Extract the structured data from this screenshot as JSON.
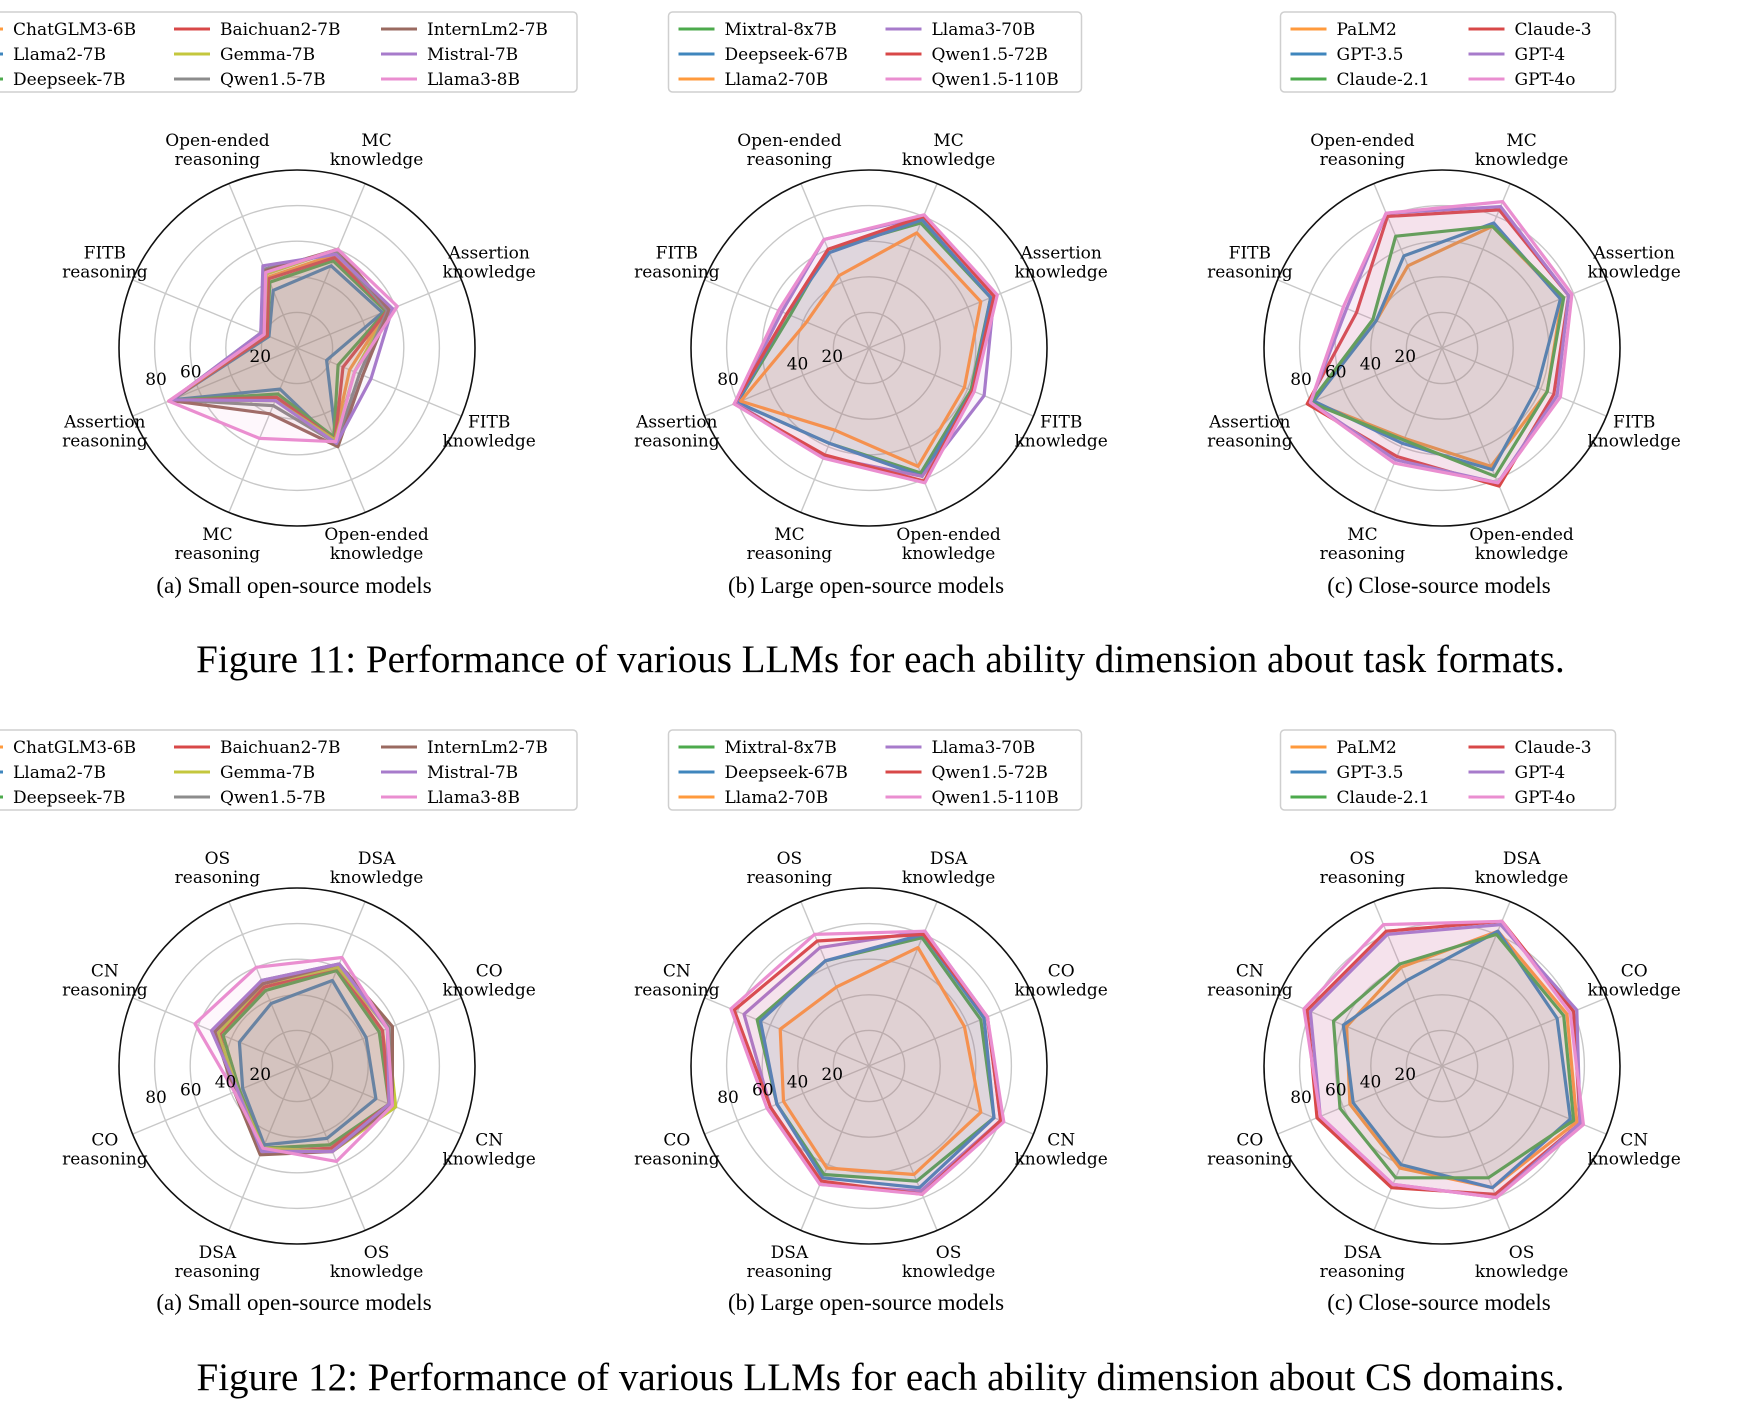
{
  "figures": [
    {
      "caption": "Figure 11: Performance of various LLMs for each ability dimension about task formats.",
      "panels": [
        {
          "legend_cols": [
            [
              "ChatGLM3-6B",
              "Llama2-7B",
              "Deepseek-7B"
            ],
            [
              "Baichuan2-7B",
              "Gemma-7B",
              "Qwen1.5-7B"
            ],
            [
              "InternLm2-7B",
              "Mistral-7B",
              "Llama3-8B"
            ]
          ],
          "caption": "(a) Small open-source models"
        },
        {
          "legend_cols": [
            [
              "Mixtral-8x7B",
              "Deepseek-67B",
              "Llama2-70B"
            ],
            [
              "Llama3-70B",
              "Qwen1.5-72B",
              "Qwen1.5-110B"
            ]
          ],
          "caption": "(b) Large open-source models"
        },
        {
          "legend_cols": [
            [
              "PaLM2",
              "GPT-3.5",
              "Claude-2.1"
            ],
            [
              "Claude-3",
              "GPT-4",
              "GPT-4o"
            ]
          ],
          "caption": "(c) Close-source models"
        }
      ]
    },
    {
      "caption": "Figure 12: Performance of various LLMs for each ability dimension about CS domains.",
      "panels": [
        {
          "legend_cols": [
            [
              "ChatGLM3-6B",
              "Llama2-7B",
              "Deepseek-7B"
            ],
            [
              "Baichuan2-7B",
              "Gemma-7B",
              "Qwen1.5-7B"
            ],
            [
              "InternLm2-7B",
              "Mistral-7B",
              "Llama3-8B"
            ]
          ],
          "caption": "(a) Small open-source models"
        },
        {
          "legend_cols": [
            [
              "Mixtral-8x7B",
              "Deepseek-67B",
              "Llama2-70B"
            ],
            [
              "Llama3-70B",
              "Qwen1.5-72B",
              "Qwen1.5-110B"
            ]
          ],
          "caption": "(b) Large open-source models"
        },
        {
          "legend_cols": [
            [
              "PaLM2",
              "GPT-3.5",
              "Claude-2.1"
            ],
            [
              "Claude-3",
              "GPT-4",
              "GPT-4o"
            ]
          ],
          "caption": "(c) Close-source models"
        }
      ]
    }
  ],
  "colors": {
    "ChatGLM3-6B": "#ff9a3c",
    "Llama2-7B": "#3f86bd",
    "Deepseek-7B": "#4caa4c",
    "Baichuan2-7B": "#d84848",
    "Gemma-7B": "#c4c73d",
    "Qwen1.5-7B": "#8c8c8c",
    "InternLm2-7B": "#9a6a60",
    "Mistral-7B": "#a77bcb",
    "Llama3-8B": "#ea8ed0",
    "Mixtral-8x7B": "#4caa4c",
    "Deepseek-67B": "#3f86bd",
    "Llama2-70B": "#ff9a3c",
    "Llama3-70B": "#a77bcb",
    "Qwen1.5-72B": "#d84848",
    "Qwen1.5-110B": "#ea8ed0",
    "PaLM2": "#ff9a3c",
    "GPT-3.5": "#3f86bd",
    "Claude-2.1": "#4caa4c",
    "Claude-3": "#d84848",
    "GPT-4": "#a77bcb",
    "GPT-4o": "#ea8ed0"
  },
  "chart_data": [
    {
      "type": "radar",
      "figure": 11,
      "panel": "a",
      "axes": [
        "MC\nknowledge",
        "Assertion\nknowledge",
        "FITB\nknowledge",
        "Open-ended\nknowledge",
        "MC\nreasoning",
        "Assertion\nreasoning",
        "FITB\nreasoning",
        "Open-ended\nreasoning"
      ],
      "r_ticks": [
        20,
        40,
        60,
        80
      ],
      "r_tick_labels": [
        "20",
        "",
        "60",
        "80"
      ],
      "r_max": 100,
      "series": [
        {
          "name": "ChatGLM3-6B",
          "values": [
            57,
            55,
            32,
            55,
            30,
            78,
            18,
            43
          ]
        },
        {
          "name": "Llama2-7B",
          "values": [
            50,
            52,
            18,
            58,
            25,
            76,
            17,
            35
          ]
        },
        {
          "name": "Deepseek-7B",
          "values": [
            53,
            54,
            25,
            54,
            28,
            77,
            18,
            40
          ]
        },
        {
          "name": "Baichuan2-7B",
          "values": [
            55,
            55,
            28,
            56,
            30,
            77,
            18,
            42
          ]
        },
        {
          "name": "Gemma-7B",
          "values": [
            60,
            56,
            35,
            56,
            32,
            77,
            20,
            45
          ]
        },
        {
          "name": "Qwen1.5-7B",
          "values": [
            58,
            55,
            38,
            58,
            35,
            76,
            22,
            48
          ]
        },
        {
          "name": "InternLm2-7B",
          "values": [
            60,
            56,
            40,
            60,
            40,
            77,
            21,
            47
          ]
        },
        {
          "name": "Mistral-7B",
          "values": [
            57,
            58,
            45,
            58,
            32,
            76,
            22,
            50
          ]
        },
        {
          "name": "Llama3-8B",
          "values": [
            60,
            61,
            35,
            57,
            55,
            78,
            20,
            46
          ]
        }
      ]
    },
    {
      "type": "radar",
      "figure": 11,
      "panel": "b",
      "axes": [
        "MC\nknowledge",
        "Assertion\nknowledge",
        "FITB\nknowledge",
        "Open-ended\nknowledge",
        "MC\nreasoning",
        "Assertion\nreasoning",
        "FITB\nreasoning",
        "Open-ended\nreasoning"
      ],
      "r_ticks": [
        20,
        40,
        60,
        80
      ],
      "r_tick_labels": [
        "20",
        "40",
        "",
        "80"
      ],
      "r_max": 100,
      "series": [
        {
          "name": "Mixtral-8x7B",
          "values": [
            76,
            74,
            62,
            76,
            58,
            80,
            48,
            60
          ]
        },
        {
          "name": "Deepseek-67B",
          "values": [
            78,
            74,
            63,
            78,
            58,
            80,
            50,
            58
          ]
        },
        {
          "name": "Llama2-70B",
          "values": [
            70,
            68,
            58,
            72,
            50,
            78,
            38,
            44
          ]
        },
        {
          "name": "Llama3-70B",
          "values": [
            80,
            76,
            70,
            78,
            66,
            81,
            53,
            66
          ]
        },
        {
          "name": "Qwen1.5-72B",
          "values": [
            80,
            76,
            63,
            81,
            65,
            82,
            50,
            60
          ]
        },
        {
          "name": "Qwen1.5-110B",
          "values": [
            81,
            78,
            64,
            82,
            67,
            82,
            55,
            66
          ]
        }
      ]
    },
    {
      "type": "radar",
      "figure": 11,
      "panel": "c",
      "axes": [
        "MC\nknowledge",
        "Assertion\nknowledge",
        "FITB\nknowledge",
        "Open-ended\nknowledge",
        "MC\nreasoning",
        "Assertion\nreasoning",
        "FITB\nreasoning",
        "Open-ended\nreasoning"
      ],
      "r_ticks": [
        20,
        40,
        60,
        80
      ],
      "r_tick_labels": [
        "20",
        "40",
        "60",
        "80"
      ],
      "r_max": 100,
      "series": [
        {
          "name": "PaLM2",
          "values": [
            74,
            73,
            64,
            72,
            55,
            79,
            40,
            50
          ]
        },
        {
          "name": "GPT-3.5",
          "values": [
            76,
            72,
            58,
            74,
            58,
            78,
            40,
            56
          ]
        },
        {
          "name": "Claude-2.1",
          "values": [
            74,
            74,
            64,
            78,
            56,
            80,
            42,
            68
          ]
        },
        {
          "name": "Claude-3",
          "values": [
            84,
            77,
            68,
            84,
            66,
            82,
            52,
            80
          ]
        },
        {
          "name": "GPT-4",
          "values": [
            86,
            77,
            70,
            82,
            68,
            80,
            58,
            82
          ]
        },
        {
          "name": "GPT-4o",
          "values": [
            89,
            79,
            72,
            82,
            70,
            80,
            60,
            82
          ]
        }
      ]
    },
    {
      "type": "radar",
      "figure": 12,
      "panel": "a",
      "axes": [
        "DSA\nknowledge",
        "CO\nknowledge",
        "CN\nknowledge",
        "OS\nknowledge",
        "DSA\nreasoning",
        "CO\nreasoning",
        "CN\nreasoning",
        "OS\nreasoning"
      ],
      "r_ticks": [
        20,
        40,
        60,
        80
      ],
      "r_tick_labels": [
        "20",
        "40",
        "60",
        "80"
      ],
      "r_max": 100,
      "series": [
        {
          "name": "ChatGLM3-6B",
          "values": [
            58,
            52,
            58,
            48,
            50,
            35,
            45,
            48
          ]
        },
        {
          "name": "Llama2-7B",
          "values": [
            52,
            42,
            48,
            44,
            48,
            33,
            35,
            38
          ]
        },
        {
          "name": "Deepseek-7B",
          "values": [
            58,
            50,
            56,
            48,
            50,
            35,
            45,
            46
          ]
        },
        {
          "name": "Baichuan2-7B",
          "values": [
            60,
            52,
            56,
            50,
            52,
            38,
            47,
            48
          ]
        },
        {
          "name": "Gemma-7B",
          "values": [
            60,
            55,
            60,
            52,
            50,
            36,
            48,
            50
          ]
        },
        {
          "name": "Qwen1.5-7B",
          "values": [
            62,
            56,
            58,
            52,
            52,
            38,
            50,
            52
          ]
        },
        {
          "name": "InternLm2-7B",
          "values": [
            62,
            58,
            58,
            52,
            54,
            38,
            50,
            50
          ]
        },
        {
          "name": "Mistral-7B",
          "values": [
            62,
            55,
            56,
            52,
            52,
            36,
            52,
            52
          ]
        },
        {
          "name": "Llama3-8B",
          "values": [
            66,
            55,
            58,
            58,
            50,
            38,
            62,
            60
          ]
        }
      ]
    },
    {
      "type": "radar",
      "figure": 12,
      "panel": "b",
      "axes": [
        "DSA\nknowledge",
        "CO\nknowledge",
        "CN\nknowledge",
        "OS\nknowledge",
        "DSA\nreasoning",
        "CO\nreasoning",
        "CN\nreasoning",
        "OS\nreasoning"
      ],
      "r_ticks": [
        20,
        40,
        60,
        80
      ],
      "r_tick_labels": [
        "20",
        "40",
        "60",
        "80"
      ],
      "r_max": 100,
      "series": [
        {
          "name": "Mixtral-8x7B",
          "values": [
            78,
            68,
            76,
            70,
            66,
            56,
            68,
            64
          ]
        },
        {
          "name": "Deepseek-67B",
          "values": [
            80,
            70,
            76,
            74,
            68,
            56,
            66,
            64
          ]
        },
        {
          "name": "Llama2-70B",
          "values": [
            72,
            58,
            68,
            66,
            62,
            52,
            54,
            48
          ]
        },
        {
          "name": "Llama3-70B",
          "values": [
            82,
            72,
            80,
            76,
            72,
            60,
            76,
            72
          ]
        },
        {
          "name": "Qwen1.5-72B",
          "values": [
            80,
            72,
            80,
            78,
            70,
            60,
            82,
            76
          ]
        },
        {
          "name": "Qwen1.5-110B",
          "values": [
            82,
            72,
            82,
            78,
            72,
            62,
            84,
            80
          ]
        }
      ]
    },
    {
      "type": "radar",
      "figure": 12,
      "panel": "c",
      "axes": [
        "DSA\nknowledge",
        "CO\nknowledge",
        "CN\nknowledge",
        "OS\nknowledge",
        "DSA\nreasoning",
        "CO\nreasoning",
        "CN\nreasoning",
        "OS\nreasoning"
      ],
      "r_ticks": [
        20,
        40,
        60,
        80
      ],
      "r_tick_labels": [
        "20",
        "40",
        "60",
        "80"
      ],
      "r_max": 100,
      "series": [
        {
          "name": "PaLM2",
          "values": [
            82,
            76,
            82,
            74,
            62,
            56,
            58,
            60
          ]
        },
        {
          "name": "GPT-3.5",
          "values": [
            82,
            70,
            78,
            74,
            60,
            54,
            60,
            52
          ]
        },
        {
          "name": "Claude-2.1",
          "values": [
            80,
            74,
            80,
            68,
            68,
            62,
            66,
            62
          ]
        },
        {
          "name": "Claude-3",
          "values": [
            88,
            80,
            84,
            78,
            74,
            76,
            82,
            82
          ]
        },
        {
          "name": "GPT-4",
          "values": [
            86,
            82,
            84,
            80,
            72,
            74,
            80,
            80
          ]
        },
        {
          "name": "GPT-4o",
          "values": [
            88,
            78,
            86,
            80,
            72,
            74,
            84,
            86
          ]
        }
      ]
    }
  ]
}
